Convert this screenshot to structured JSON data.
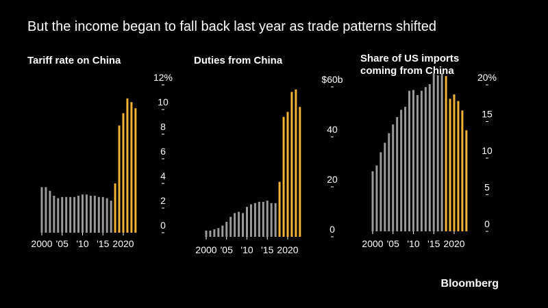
{
  "headline": "But the income began to fall back last year as trade patterns shifted",
  "source": "Bloomberg",
  "colors": {
    "before": "#9a9a9a",
    "after": "#f2b233",
    "background": "#000000",
    "text": "#ffffff"
  },
  "chart_data": [
    {
      "type": "bar",
      "title": "Tariff rate on China",
      "x": [
        2000,
        2001,
        2002,
        2003,
        2004,
        2005,
        2006,
        2007,
        2008,
        2009,
        2010,
        2011,
        2012,
        2013,
        2014,
        2015,
        2016,
        2017,
        2018,
        2019,
        2020,
        2021,
        2022,
        2023
      ],
      "values": [
        3.7,
        3.7,
        3.4,
        3.0,
        2.8,
        2.9,
        2.9,
        2.9,
        2.9,
        3.0,
        3.1,
        3.1,
        3.0,
        3.0,
        2.9,
        2.9,
        2.8,
        2.6,
        4.0,
        8.7,
        9.7,
        10.9,
        10.6,
        10.1
      ],
      "highlight_from": 2018,
      "ylim": [
        0,
        12
      ],
      "yticks": [
        0,
        2,
        4,
        6,
        8,
        10,
        12
      ],
      "ytick_labels": [
        "0",
        "2",
        "4",
        "6",
        "8",
        "10",
        "12%"
      ],
      "xtick_labels": [
        {
          "x": 2000,
          "label": "2000"
        },
        {
          "x": 2005,
          "label": "'05"
        },
        {
          "x": 2010,
          "label": "'10"
        },
        {
          "x": 2015,
          "label": "'15"
        },
        {
          "x": 2020,
          "label": "2020"
        }
      ]
    },
    {
      "type": "bar",
      "title": "Duties from China",
      "x": [
        2000,
        2001,
        2002,
        2003,
        2004,
        2005,
        2006,
        2007,
        2008,
        2009,
        2010,
        2011,
        2012,
        2013,
        2014,
        2015,
        2016,
        2017,
        2018,
        2019,
        2020,
        2021,
        2022,
        2023
      ],
      "values": [
        2.5,
        2.5,
        3.0,
        3.5,
        4.5,
        6.0,
        8.0,
        9.5,
        10.0,
        9.5,
        12.0,
        13.0,
        13.5,
        14.0,
        14.0,
        14.5,
        13.5,
        13.5,
        22.0,
        48.0,
        50.0,
        58.0,
        59.0,
        52.0
      ],
      "highlight_from": 2018,
      "ylim": [
        0,
        60
      ],
      "yticks": [
        0,
        20,
        40,
        60
      ],
      "ytick_labels": [
        "0",
        "20",
        "40",
        "$60b"
      ],
      "xtick_labels": [
        {
          "x": 2000,
          "label": "2000"
        },
        {
          "x": 2005,
          "label": "'05"
        },
        {
          "x": 2010,
          "label": "'10"
        },
        {
          "x": 2015,
          "label": "'15"
        },
        {
          "x": 2020,
          "label": "2020"
        }
      ]
    },
    {
      "type": "bar",
      "title": "Share of US imports coming from China",
      "x": [
        2000,
        2001,
        2002,
        2003,
        2004,
        2005,
        2006,
        2007,
        2008,
        2009,
        2010,
        2011,
        2012,
        2013,
        2014,
        2015,
        2016,
        2017,
        2018,
        2019,
        2020,
        2021,
        2022,
        2023
      ],
      "values": [
        8.2,
        9.0,
        10.8,
        12.1,
        13.4,
        14.6,
        15.6,
        16.6,
        17.0,
        19.2,
        19.3,
        18.6,
        19.2,
        19.7,
        20.1,
        21.6,
        21.3,
        21.6,
        21.2,
        18.1,
        18.7,
        17.8,
        16.5,
        13.8
      ],
      "highlight_from": 2018,
      "ylim": [
        0,
        20
      ],
      "yticks": [
        0,
        5,
        10,
        15,
        20
      ],
      "ytick_labels": [
        "0",
        "5",
        "10",
        "15",
        "20%"
      ],
      "xtick_labels": [
        {
          "x": 2000,
          "label": "2000"
        },
        {
          "x": 2005,
          "label": "'05"
        },
        {
          "x": 2010,
          "label": "'10"
        },
        {
          "x": 2015,
          "label": "'15"
        },
        {
          "x": 2020,
          "label": "2020"
        }
      ]
    }
  ]
}
